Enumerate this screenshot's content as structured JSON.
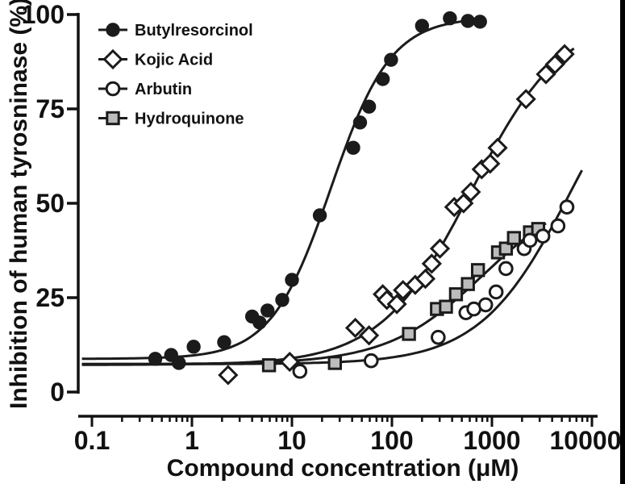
{
  "chart_data": {
    "type": "scatter",
    "title": "",
    "xlabel": "Compound concentration (μM)",
    "ylabel": "Inhibition of human tyrosninase (%)",
    "x_scale": "log",
    "x_range": [
      0.1,
      10000
    ],
    "x_ticks": [
      "0.1",
      "1",
      "10",
      "100",
      "1000",
      "10000"
    ],
    "x_minor_ticks": "log 2-9 per decade",
    "ylim": [
      0,
      100
    ],
    "y_ticks": [
      "0",
      "25",
      "50",
      "75",
      "100"
    ],
    "grid": false,
    "legend_position": "top-left",
    "axis_color": "#111111",
    "curve_color": "#1b1b1b",
    "series": [
      {
        "name": "Butylresorcinol",
        "marker": "filled-circle",
        "marker_fill": "#1b1b1b",
        "marker_stroke": "#1b1b1b",
        "points": [
          [
            0.43,
            8.8
          ],
          [
            0.62,
            9.8
          ],
          [
            0.74,
            7.7
          ],
          [
            1.04,
            12
          ],
          [
            2.1,
            13.2
          ],
          [
            4.0,
            20
          ],
          [
            4.75,
            18.4
          ],
          [
            5.7,
            21.6
          ],
          [
            8,
            24.4
          ],
          [
            10,
            29.7
          ],
          [
            19,
            46.8
          ],
          [
            41,
            64.7
          ],
          [
            48,
            71.4
          ],
          [
            59,
            75.6
          ],
          [
            81,
            82.9
          ],
          [
            98,
            88
          ],
          [
            200,
            97
          ],
          [
            380,
            99
          ],
          [
            575,
            98.3
          ],
          [
            760,
            98.1
          ]
        ],
        "fit": {
          "bottom": 8.8,
          "top": 99.3,
          "logec50": 1.39,
          "hill": 1.45,
          "log_domain": [
            -1.1,
            2.93
          ]
        }
      },
      {
        "name": "Kojic Acid",
        "marker": "open-diamond",
        "marker_fill": "#ffffff",
        "marker_stroke": "#1b1b1b",
        "points": [
          [
            2.3,
            4.5
          ],
          [
            9.5,
            8
          ],
          [
            43,
            17
          ],
          [
            59,
            15
          ],
          [
            81,
            25.9
          ],
          [
            89,
            24.4
          ],
          [
            112,
            23.3
          ],
          [
            129,
            27
          ],
          [
            171,
            28.4
          ],
          [
            216,
            30
          ],
          [
            250,
            34
          ],
          [
            302,
            38
          ],
          [
            420,
            49
          ],
          [
            520,
            50
          ],
          [
            615,
            53
          ],
          [
            790,
            59
          ],
          [
            960,
            60.5
          ],
          [
            1140,
            64.7
          ],
          [
            2190,
            77.6
          ],
          [
            3470,
            84.2
          ],
          [
            4270,
            86.8
          ],
          [
            5330,
            89.5
          ]
        ],
        "fit": {
          "bottom": 7.2,
          "top": 100,
          "logec50": 2.8,
          "hill": 0.95,
          "log_domain": [
            -1.1,
            3.85
          ]
        }
      },
      {
        "name": "Arbutin",
        "marker": "open-circle",
        "marker_fill": "#ffffff",
        "marker_stroke": "#1b1b1b",
        "points": [
          [
            12,
            5.5
          ],
          [
            62,
            8.3
          ],
          [
            290,
            14.5
          ],
          [
            550,
            21
          ],
          [
            660,
            22
          ],
          [
            865,
            23.1
          ],
          [
            1100,
            26.5
          ],
          [
            1380,
            32.7
          ],
          [
            2100,
            38
          ],
          [
            2400,
            40.2
          ],
          [
            3230,
            41.3
          ],
          [
            4570,
            44
          ],
          [
            5620,
            49
          ]
        ],
        "fit": {
          "bottom": 7.4,
          "top": 100,
          "logec50": 3.8,
          "hill": 0.95,
          "log_domain": [
            -1.1,
            3.93
          ]
        }
      },
      {
        "name": "Hydroquinone",
        "marker": "filled-square",
        "marker_fill": "#bcbcbc",
        "marker_stroke": "#1b1b1b",
        "points": [
          [
            5.9,
            7.1
          ],
          [
            26.9,
            7.7
          ],
          [
            148,
            15.4
          ],
          [
            282,
            22
          ],
          [
            347,
            22.6
          ],
          [
            437,
            25.9
          ],
          [
            575,
            28.6
          ],
          [
            725,
            32.3
          ],
          [
            1150,
            37
          ],
          [
            1380,
            38
          ],
          [
            1660,
            40.8
          ],
          [
            2400,
            42.3
          ],
          [
            2900,
            43.2
          ]
        ],
        "fit": {
          "bottom": 7.4,
          "top": 55,
          "logec50": 2.92,
          "hill": 0.9,
          "log_domain": [
            -1.1,
            3.54
          ]
        }
      }
    ]
  },
  "artifacts": {
    "right_edge_bar_color": "#000000"
  }
}
